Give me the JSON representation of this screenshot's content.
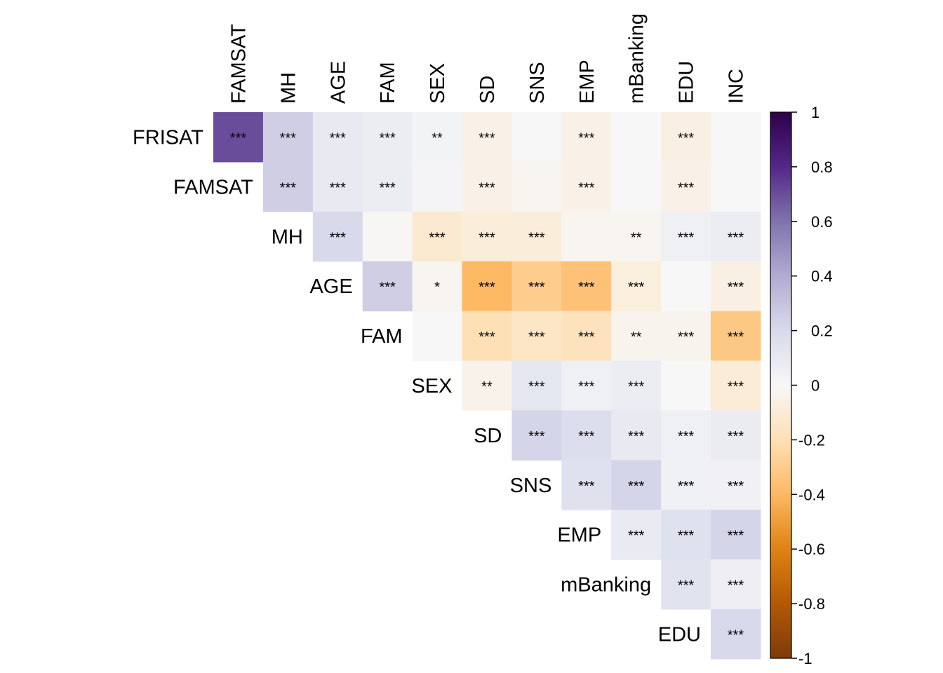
{
  "chart_data": {
    "type": "heatmap",
    "title": "",
    "layout": "upper-triangle",
    "row_labels": [
      "FRISAT",
      "FAMSAT",
      "MH",
      "AGE",
      "FAM",
      "SEX",
      "SD",
      "SNS",
      "EMP",
      "mBanking",
      "EDU"
    ],
    "col_labels": [
      "FAMSAT",
      "MH",
      "AGE",
      "FAM",
      "SEX",
      "SD",
      "SNS",
      "EMP",
      "mBanking",
      "EDU",
      "INC"
    ],
    "values": [
      [
        0.7,
        0.25,
        0.1,
        0.07,
        0.03,
        -0.05,
        0.0,
        -0.05,
        0.0,
        -0.06,
        0.0
      ],
      [
        null,
        0.25,
        0.1,
        0.07,
        0.02,
        -0.05,
        -0.02,
        -0.05,
        0.0,
        -0.05,
        0.0
      ],
      [
        null,
        null,
        0.2,
        -0.01,
        -0.12,
        -0.09,
        -0.09,
        -0.02,
        -0.02,
        0.05,
        0.07
      ],
      [
        null,
        null,
        null,
        0.25,
        -0.02,
        -0.4,
        -0.3,
        -0.35,
        -0.08,
        0.0,
        -0.06
      ],
      [
        null,
        null,
        null,
        null,
        0.0,
        -0.2,
        -0.15,
        -0.18,
        -0.03,
        -0.03,
        -0.32
      ],
      [
        null,
        null,
        null,
        null,
        null,
        -0.04,
        0.12,
        0.05,
        0.07,
        0.0,
        -0.1
      ],
      [
        null,
        null,
        null,
        null,
        null,
        null,
        0.22,
        0.17,
        0.1,
        0.05,
        0.08
      ],
      [
        null,
        null,
        null,
        null,
        null,
        null,
        null,
        0.15,
        0.22,
        0.05,
        0.04
      ],
      [
        null,
        null,
        null,
        null,
        null,
        null,
        null,
        null,
        0.09,
        0.15,
        0.22
      ],
      [
        null,
        null,
        null,
        null,
        null,
        null,
        null,
        null,
        null,
        0.14,
        0.06
      ],
      [
        null,
        null,
        null,
        null,
        null,
        null,
        null,
        null,
        null,
        null,
        0.2
      ]
    ],
    "significance": [
      [
        "***",
        "***",
        "***",
        "***",
        "**",
        "***",
        "",
        "***",
        "",
        "***",
        ""
      ],
      [
        null,
        "***",
        "***",
        "***",
        "",
        "***",
        "",
        "***",
        "",
        "***",
        ""
      ],
      [
        null,
        null,
        "***",
        "",
        "***",
        "***",
        "***",
        "",
        "**",
        "***",
        "***"
      ],
      [
        null,
        null,
        null,
        "***",
        "*",
        "***",
        "***",
        "***",
        "***",
        "",
        "***"
      ],
      [
        null,
        null,
        null,
        null,
        "",
        "***",
        "***",
        "***",
        "**",
        "***",
        "***"
      ],
      [
        null,
        null,
        null,
        null,
        null,
        "**",
        "***",
        "***",
        "***",
        "",
        "***"
      ],
      [
        null,
        null,
        null,
        null,
        null,
        null,
        "***",
        "***",
        "***",
        "***",
        "***"
      ],
      [
        null,
        null,
        null,
        null,
        null,
        null,
        null,
        "***",
        "***",
        "***",
        "***"
      ],
      [
        null,
        null,
        null,
        null,
        null,
        null,
        null,
        null,
        "***",
        "***",
        "***"
      ],
      [
        null,
        null,
        null,
        null,
        null,
        null,
        null,
        null,
        null,
        "***",
        "***"
      ],
      [
        null,
        null,
        null,
        null,
        null,
        null,
        null,
        null,
        null,
        null,
        "***"
      ]
    ],
    "colorbar": {
      "range": [
        -1,
        1
      ],
      "tick_values": [
        1,
        0.8,
        0.6,
        0.4,
        0.2,
        0,
        -0.2,
        -0.4,
        -0.6,
        -0.8,
        -1
      ],
      "tick_labels": [
        "1",
        "0.8",
        "0.6",
        "0.4",
        "0.2",
        "0",
        "-0.2",
        "-0.4",
        "-0.6",
        "-0.8",
        "-1"
      ],
      "colors_high_to_low": [
        "#2d004b",
        "#542788",
        "#8073ac",
        "#b2abd2",
        "#d8daeb",
        "#f7f7f7",
        "#fee0b6",
        "#fdb863",
        "#e08214",
        "#b35806",
        "#7f3b08"
      ],
      "legend_placement": "right"
    }
  }
}
